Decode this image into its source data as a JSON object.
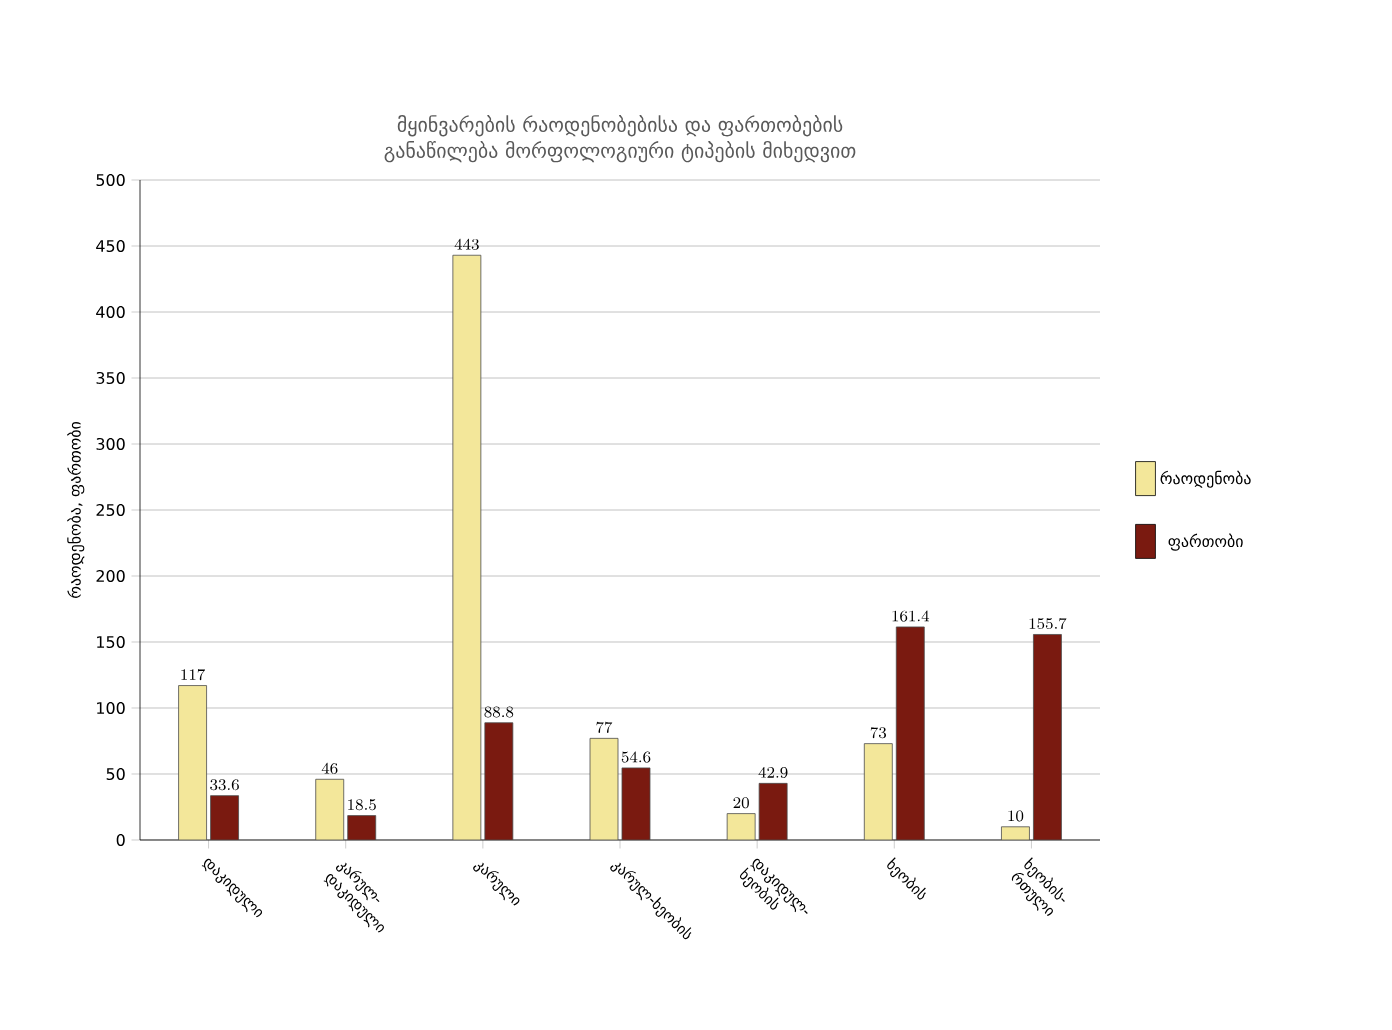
{
  "chart_data": {
    "type": "bar",
    "title": "მყინვარების რაოდენობებისა და ფართობების განაწილება მორფოლოგიური ტიპების მიხედვით",
    "ylabel": "რაოდენობა, ფართობი",
    "categories": [
      "დაკიდული",
      "კარულ-დაკიდული",
      "კარული",
      "კარულ-ხეობის",
      "დაკიდულ-ხეობის",
      "ხეობის",
      "ხეობის-რთული"
    ],
    "series": [
      {
        "name": "რაოდენობა",
        "color": "#f3e79a",
        "values": [
          117,
          46,
          443,
          77,
          20,
          73,
          10
        ]
      },
      {
        "name": "ფართობი",
        "color": "#7a1a10",
        "values": [
          33.6,
          18.5,
          88.8,
          54.6,
          42.9,
          161.4,
          155.7
        ]
      }
    ],
    "ylim": [
      0,
      500
    ],
    "yticks": [
      0,
      50,
      100,
      150,
      200,
      250,
      300,
      350,
      400,
      450,
      500
    ],
    "grid": "y",
    "legend": "right",
    "data_labels": true
  }
}
